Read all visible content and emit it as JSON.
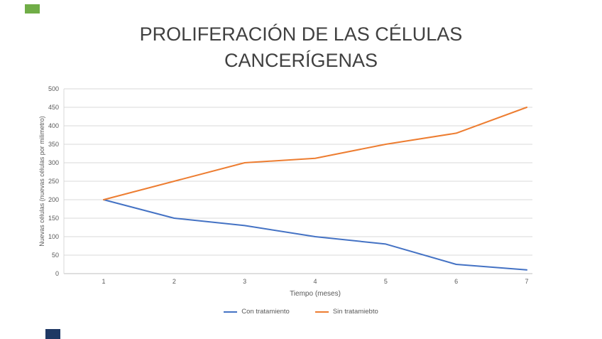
{
  "page": {
    "decor_green_color": "#70AD47",
    "decor_navy_color": "#1F3864",
    "title_color": "#404040",
    "axis_text_color": "#595959",
    "gridline_color": "#D9D9D9",
    "axisline_color": "#BFBFBF"
  },
  "chart_data": {
    "type": "line",
    "title": "PROLIFERACIÓN DE LAS CÉLULAS CANCERÍGENAS",
    "xlabel": "Tiempo (meses)",
    "ylabel": "Nuevas células (nuevas células por milimetro)",
    "categories": [
      "1",
      "2",
      "3",
      "4",
      "5",
      "6",
      "7"
    ],
    "series": [
      {
        "name": "Con tratamiento",
        "color": "#4472C4",
        "values": [
          200,
          150,
          130,
          100,
          80,
          25,
          10
        ]
      },
      {
        "name": "Sin tratamiebto",
        "color": "#ED7D31",
        "values": [
          200,
          250,
          300,
          312,
          350,
          380,
          450
        ]
      }
    ],
    "ylim": [
      0,
      500
    ],
    "ytick_step": 50,
    "grid": true,
    "legend_position": "bottom"
  }
}
